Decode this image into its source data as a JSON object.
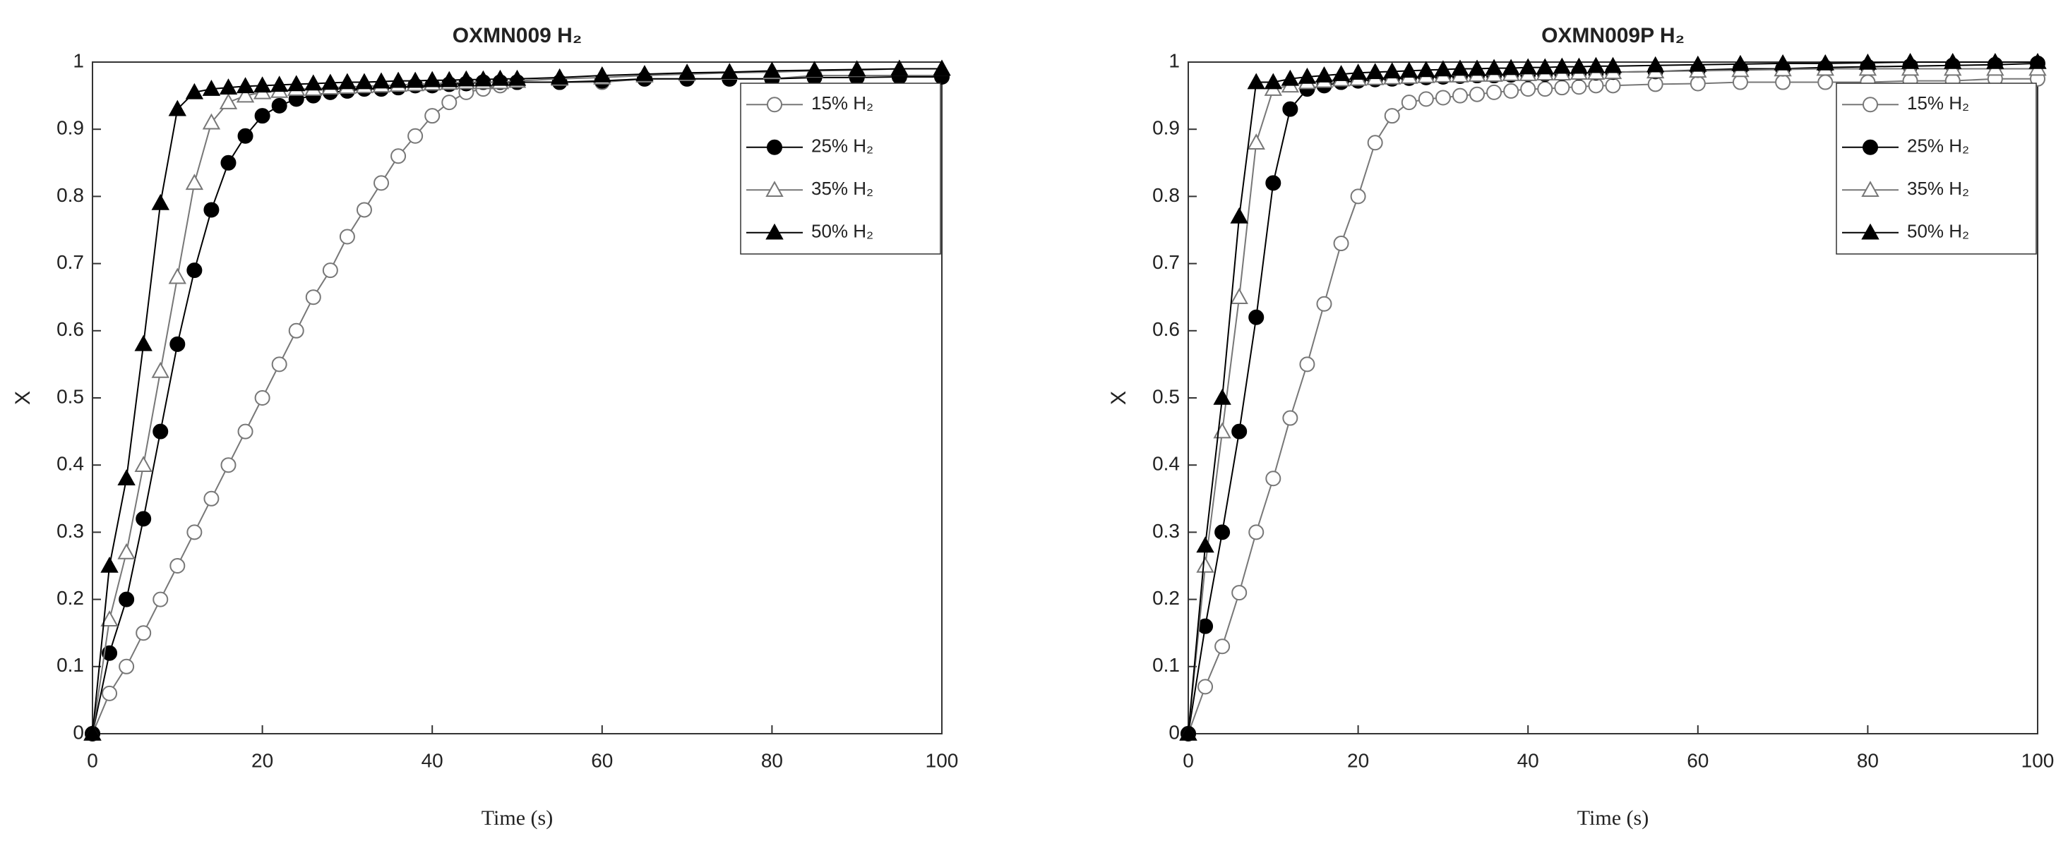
{
  "chart_data": [
    {
      "type": "line",
      "title": "OXMN009 H₂",
      "x_label": "Time (s)",
      "y_label": "X",
      "legend": "upper right",
      "x": [
        0,
        2,
        4,
        6,
        8,
        10,
        12,
        14,
        16,
        18,
        20,
        22,
        24,
        26,
        28,
        30,
        32,
        34,
        36,
        38,
        40,
        42,
        44,
        46,
        48,
        50,
        55,
        60,
        65,
        70,
        75,
        80,
        85,
        90,
        95,
        100
      ],
      "xlim": [
        0,
        100
      ],
      "ylim": [
        0,
        1
      ],
      "xticks": [
        0,
        20,
        40,
        60,
        80,
        100
      ],
      "yticks": [
        0,
        0.1,
        0.2,
        0.3,
        0.4,
        0.5,
        0.6,
        0.7,
        0.8,
        0.9,
        1
      ],
      "series": [
        {
          "name": "15% H₂",
          "color": "#777777",
          "marker": "circle",
          "filled": false,
          "values": [
            0,
            0.06,
            0.1,
            0.15,
            0.2,
            0.25,
            0.3,
            0.35,
            0.4,
            0.45,
            0.5,
            0.55,
            0.6,
            0.65,
            0.69,
            0.74,
            0.78,
            0.82,
            0.86,
            0.89,
            0.92,
            0.94,
            0.955,
            0.96,
            0.965,
            0.97,
            0.97,
            0.97,
            0.975,
            0.975,
            0.975,
            0.975,
            0.98,
            0.98,
            0.98,
            0.98
          ]
        },
        {
          "name": "25% H₂",
          "color": "#000000",
          "marker": "circle",
          "filled": true,
          "values": [
            0,
            0.12,
            0.2,
            0.32,
            0.45,
            0.58,
            0.69,
            0.78,
            0.85,
            0.89,
            0.92,
            0.935,
            0.945,
            0.95,
            0.955,
            0.957,
            0.96,
            0.96,
            0.962,
            0.965,
            0.965,
            0.967,
            0.968,
            0.97,
            0.97,
            0.97,
            0.97,
            0.972,
            0.975,
            0.975,
            0.975,
            0.975,
            0.977,
            0.977,
            0.978,
            0.978
          ]
        },
        {
          "name": "35% H₂",
          "color": "#777777",
          "marker": "triangle",
          "filled": false,
          "values": [
            0,
            0.17,
            0.27,
            0.4,
            0.54,
            0.68,
            0.82,
            0.91,
            0.94,
            0.95,
            0.955,
            0.957,
            0.96,
            0.96,
            0.962,
            0.963,
            0.964,
            0.965,
            0.966,
            0.967,
            0.968,
            0.969,
            0.97,
            0.97,
            0.97,
            0.972,
            0.975,
            0.977,
            0.98,
            0.982,
            0.984,
            0.985,
            0.987,
            0.988,
            0.99,
            0.99
          ]
        },
        {
          "name": "50% H₂",
          "color": "#000000",
          "marker": "triangle",
          "filled": true,
          "values": [
            0,
            0.25,
            0.38,
            0.58,
            0.79,
            0.93,
            0.955,
            0.96,
            0.962,
            0.964,
            0.965,
            0.966,
            0.967,
            0.968,
            0.969,
            0.97,
            0.97,
            0.971,
            0.972,
            0.972,
            0.973,
            0.973,
            0.974,
            0.974,
            0.975,
            0.975,
            0.977,
            0.98,
            0.982,
            0.984,
            0.985,
            0.987,
            0.988,
            0.989,
            0.99,
            0.99
          ]
        }
      ]
    },
    {
      "type": "line",
      "title": "OXMN009P H₂",
      "x_label": "Time (s)",
      "y_label": "X",
      "legend": "upper right",
      "x": [
        0,
        2,
        4,
        6,
        8,
        10,
        12,
        14,
        16,
        18,
        20,
        22,
        24,
        26,
        28,
        30,
        32,
        34,
        36,
        38,
        40,
        42,
        44,
        46,
        48,
        50,
        55,
        60,
        65,
        70,
        75,
        80,
        85,
        90,
        95,
        100
      ],
      "xlim": [
        0,
        100
      ],
      "ylim": [
        0,
        1
      ],
      "xticks": [
        0,
        20,
        40,
        60,
        80,
        100
      ],
      "yticks": [
        0,
        0.1,
        0.2,
        0.3,
        0.4,
        0.5,
        0.6,
        0.7,
        0.8,
        0.9,
        1
      ],
      "series": [
        {
          "name": "15% H₂",
          "color": "#777777",
          "marker": "circle",
          "filled": false,
          "values": [
            0,
            0.07,
            0.13,
            0.21,
            0.3,
            0.38,
            0.47,
            0.55,
            0.64,
            0.73,
            0.8,
            0.88,
            0.92,
            0.94,
            0.945,
            0.947,
            0.95,
            0.952,
            0.955,
            0.957,
            0.96,
            0.96,
            0.962,
            0.963,
            0.965,
            0.965,
            0.967,
            0.968,
            0.97,
            0.97,
            0.97,
            0.97,
            0.972,
            0.972,
            0.975,
            0.975
          ]
        },
        {
          "name": "25% H₂",
          "color": "#000000",
          "marker": "circle",
          "filled": true,
          "values": [
            0,
            0.16,
            0.3,
            0.45,
            0.62,
            0.82,
            0.93,
            0.96,
            0.965,
            0.97,
            0.972,
            0.974,
            0.975,
            0.976,
            0.977,
            0.978,
            0.979,
            0.98,
            0.98,
            0.981,
            0.982,
            0.982,
            0.983,
            0.984,
            0.984,
            0.985,
            0.986,
            0.988,
            0.99,
            0.99,
            0.992,
            0.993,
            0.994,
            0.995,
            0.996,
            0.998
          ]
        },
        {
          "name": "35% H₂",
          "color": "#777777",
          "marker": "triangle",
          "filled": false,
          "values": [
            0,
            0.25,
            0.45,
            0.65,
            0.88,
            0.96,
            0.965,
            0.97,
            0.972,
            0.974,
            0.975,
            0.976,
            0.977,
            0.978,
            0.979,
            0.98,
            0.98,
            0.981,
            0.981,
            0.982,
            0.982,
            0.983,
            0.983,
            0.984,
            0.984,
            0.985,
            0.986,
            0.987,
            0.988,
            0.989,
            0.99,
            0.99,
            0.99,
            0.99,
            0.99,
            0.99
          ]
        },
        {
          "name": "50% H₂",
          "color": "#000000",
          "marker": "triangle",
          "filled": true,
          "values": [
            0,
            0.28,
            0.5,
            0.77,
            0.97,
            0.97,
            0.975,
            0.978,
            0.98,
            0.982,
            0.984,
            0.985,
            0.986,
            0.987,
            0.988,
            0.989,
            0.99,
            0.99,
            0.991,
            0.991,
            0.992,
            0.992,
            0.993,
            0.993,
            0.994,
            0.994,
            0.995,
            0.996,
            0.997,
            0.998,
            0.998,
            0.999,
            1,
            1,
            1,
            1
          ]
        }
      ]
    }
  ]
}
